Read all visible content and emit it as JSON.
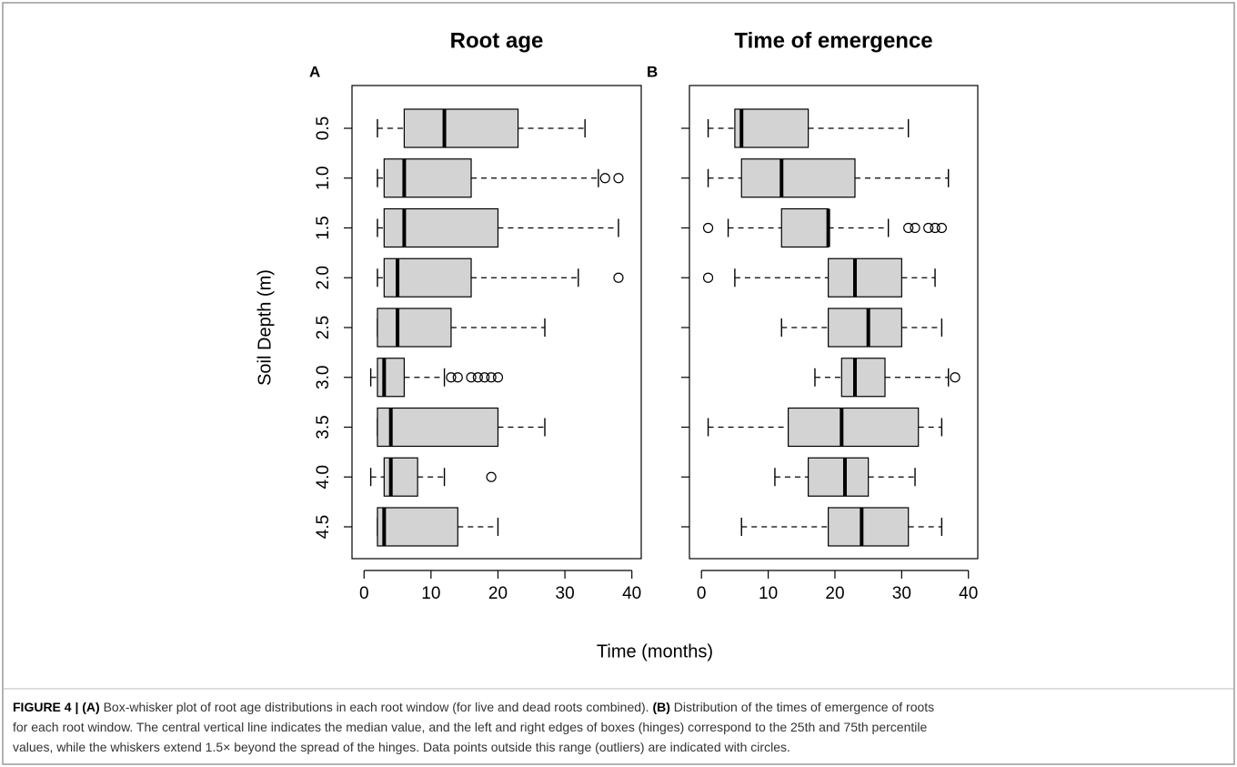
{
  "chart_data": [
    {
      "type": "boxplot",
      "title": "Root age",
      "panel_label": "A",
      "ylabel": "Soil Depth (m)",
      "color": "#d3d3d3",
      "categories": [
        "0.5",
        "1.0",
        "1.5",
        "2.0",
        "2.5",
        "3.0",
        "3.5",
        "4.0",
        "4.5"
      ],
      "low": [
        2,
        2,
        2,
        2,
        2,
        1,
        2,
        1,
        2
      ],
      "q1": [
        6,
        3,
        3,
        3,
        2,
        2,
        2,
        3,
        2
      ],
      "median": [
        12,
        6,
        6,
        5,
        5,
        3,
        4,
        4,
        3
      ],
      "q3": [
        23,
        16,
        20,
        16,
        13,
        6,
        20,
        8,
        14
      ],
      "high": [
        33,
        35,
        38,
        32,
        27,
        12,
        27,
        12,
        20
      ],
      "outliers": [
        [],
        [
          36,
          38
        ],
        [],
        [
          38
        ],
        [],
        [
          13,
          14,
          16,
          17,
          18,
          19,
          20
        ],
        [],
        [
          19
        ],
        []
      ],
      "xlim": [
        -1.8,
        41.4
      ],
      "xticks": [
        0,
        10,
        20,
        30,
        40
      ]
    },
    {
      "type": "boxplot",
      "title": "Time of emergence",
      "panel_label": "B",
      "color": "#d3d3d3",
      "categories": [
        null,
        null,
        null,
        null,
        null,
        null,
        null,
        null,
        null
      ],
      "low": [
        1,
        1,
        4,
        5,
        12,
        17,
        1,
        11,
        6
      ],
      "q1": [
        5,
        6,
        12,
        19,
        19,
        21,
        13,
        16,
        19
      ],
      "median": [
        6,
        12,
        19,
        23,
        25,
        23,
        21,
        21.5,
        24
      ],
      "q3": [
        16,
        23,
        19,
        30,
        30,
        27.5,
        32.5,
        25,
        31
      ],
      "high": [
        31,
        37,
        28,
        35,
        36,
        37,
        36,
        32,
        36
      ],
      "outliers": [
        [],
        [],
        [
          1,
          31,
          32,
          34,
          35,
          36
        ],
        [
          1
        ],
        [],
        [
          38
        ],
        [],
        [],
        []
      ],
      "xlim": [
        -1.8,
        41.4
      ],
      "xticks": [
        0,
        10,
        20,
        30,
        40
      ]
    }
  ],
  "figure": {
    "xlabel": "Time (months)"
  },
  "caption": {
    "lines": [
      [
        {
          "text": "FIGURE 4 | (A)",
          "bold": true
        },
        {
          "text": " Box-whisker plot of root age distributions in each root window (for live and dead roots combined). ",
          "bold": false
        },
        {
          "text": "(B)",
          "bold": true
        },
        {
          "text": " Distribution of the times of emergence of roots",
          "bold": false
        }
      ],
      [
        {
          "text": "for each root window. The central vertical line indicates the median value, and the left and right edges of boxes (hinges) correspond to the 25th and 75th percentile",
          "bold": false
        }
      ],
      [
        {
          "text": "values, while the whiskers extend 1.5× beyond the spread of the hinges. Data points outside this range (outliers) are indicated with circles.",
          "bold": false
        }
      ]
    ]
  }
}
